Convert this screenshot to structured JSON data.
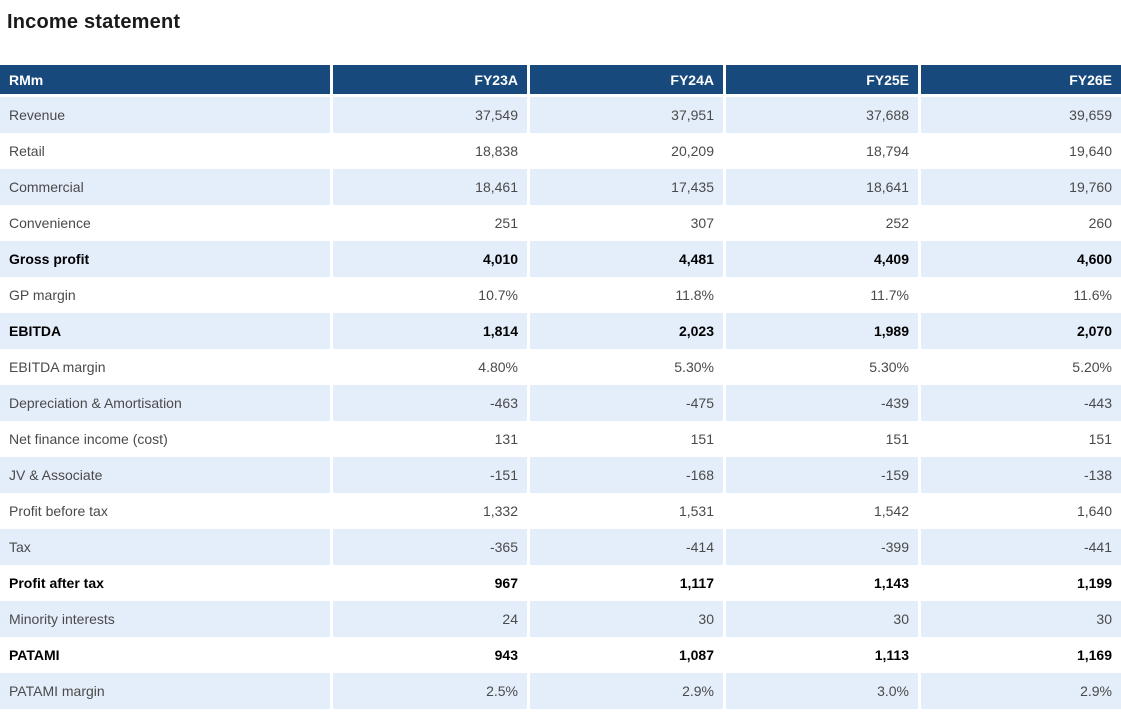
{
  "page": {
    "title": "Income statement"
  },
  "table": {
    "unit_label": "RMm",
    "columns": [
      "FY23A",
      "FY24A",
      "FY25E",
      "FY26E"
    ],
    "rows": [
      {
        "label": "Revenue",
        "bold": false,
        "values": [
          "37,549",
          "37,951",
          "37,688",
          "39,659"
        ]
      },
      {
        "label": "Retail",
        "bold": false,
        "values": [
          "18,838",
          "20,209",
          "18,794",
          "19,640"
        ]
      },
      {
        "label": "Commercial",
        "bold": false,
        "values": [
          "18,461",
          "17,435",
          "18,641",
          "19,760"
        ]
      },
      {
        "label": "Convenience",
        "bold": false,
        "values": [
          "251",
          "307",
          "252",
          "260"
        ]
      },
      {
        "label": "Gross profit",
        "bold": true,
        "values": [
          "4,010",
          "4,481",
          "4,409",
          "4,600"
        ]
      },
      {
        "label": "GP margin",
        "bold": false,
        "values": [
          "10.7%",
          "11.8%",
          "11.7%",
          "11.6%"
        ]
      },
      {
        "label": "EBITDA",
        "bold": true,
        "values": [
          "1,814",
          "2,023",
          "1,989",
          "2,070"
        ]
      },
      {
        "label": "EBITDA margin",
        "bold": false,
        "values": [
          "4.80%",
          "5.30%",
          "5.30%",
          "5.20%"
        ]
      },
      {
        "label": "Depreciation & Amortisation",
        "bold": false,
        "values": [
          "-463",
          "-475",
          "-439",
          "-443"
        ]
      },
      {
        "label": "Net finance income (cost)",
        "bold": false,
        "values": [
          "131",
          "151",
          "151",
          "151"
        ]
      },
      {
        "label": "JV & Associate",
        "bold": false,
        "values": [
          "-151",
          "-168",
          "-159",
          "-138"
        ]
      },
      {
        "label": "Profit before tax",
        "bold": false,
        "values": [
          "1,332",
          "1,531",
          "1,542",
          "1,640"
        ]
      },
      {
        "label": "Tax",
        "bold": false,
        "values": [
          "-365",
          "-414",
          "-399",
          "-441"
        ]
      },
      {
        "label": "Profit after tax",
        "bold": true,
        "values": [
          "967",
          "1,117",
          "1,143",
          "1,199"
        ]
      },
      {
        "label": "Minority interests",
        "bold": false,
        "values": [
          "24",
          "30",
          "30",
          "30"
        ]
      },
      {
        "label": "PATAMI",
        "bold": true,
        "values": [
          "943",
          "1,087",
          "1,113",
          "1,169"
        ]
      },
      {
        "label": "PATAMI margin",
        "bold": false,
        "values": [
          "2.5%",
          "2.9%",
          "3.0%",
          "2.9%"
        ]
      }
    ]
  },
  "colors": {
    "header_bg": "#17497D",
    "alt_row_bg": "#E4EEFA",
    "divider": "#FFFFFF"
  }
}
